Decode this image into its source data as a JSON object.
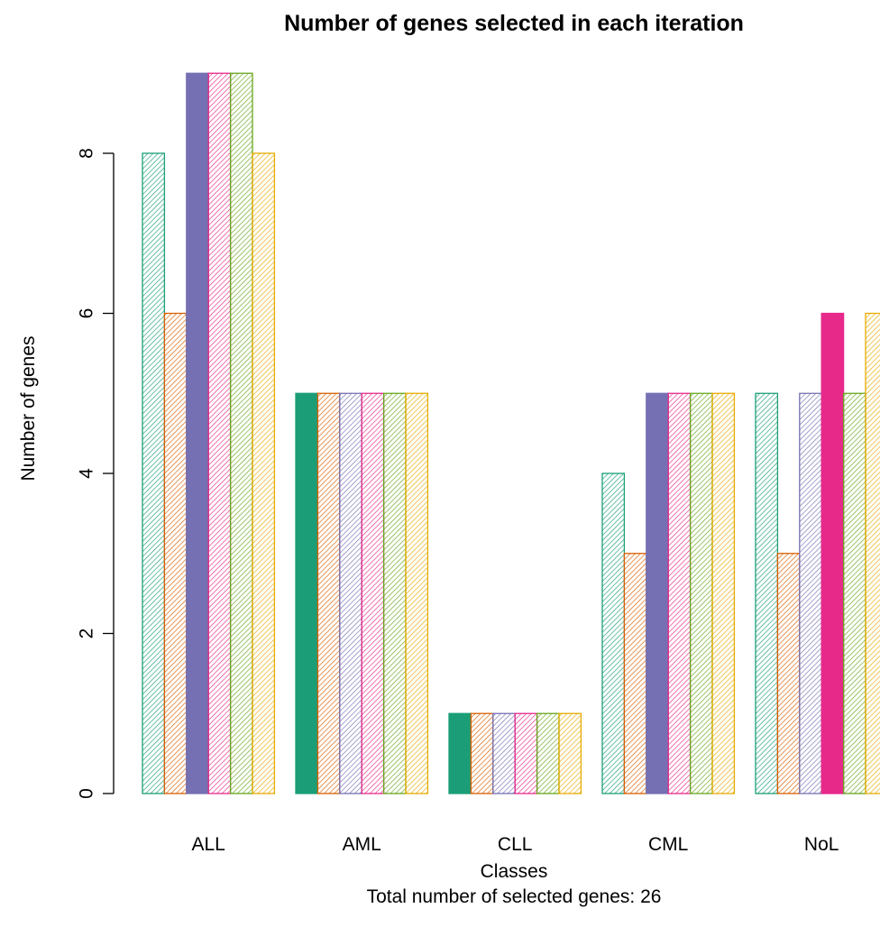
{
  "chart_data": {
    "type": "bar",
    "title": "Number of genes selected in each iteration",
    "xlabel": "Classes",
    "subtitle": "Total number of selected genes:  26",
    "ylabel": "Number of genes",
    "categories": [
      "ALL",
      "AML",
      "CLL",
      "CML",
      "NoL"
    ],
    "ylim": [
      0,
      9
    ],
    "yticks": [
      0,
      2,
      4,
      6,
      8
    ],
    "grid": false,
    "series": [
      {
        "values": [
          8,
          5,
          1,
          4,
          5
        ],
        "color": "#1B9E77",
        "solid": [
          false,
          true,
          true,
          false,
          false
        ]
      },
      {
        "values": [
          6,
          5,
          1,
          3,
          3
        ],
        "color": "#D95F02",
        "solid": [
          false,
          false,
          false,
          false,
          false
        ]
      },
      {
        "values": [
          9,
          5,
          1,
          5,
          5
        ],
        "color": "#7570B3",
        "solid": [
          true,
          false,
          false,
          true,
          false
        ]
      },
      {
        "values": [
          9,
          5,
          1,
          5,
          6
        ],
        "color": "#E7298A",
        "solid": [
          false,
          false,
          false,
          false,
          true
        ]
      },
      {
        "values": [
          9,
          5,
          1,
          5,
          5
        ],
        "color": "#66A61E",
        "solid": [
          false,
          false,
          false,
          false,
          false
        ]
      },
      {
        "values": [
          8,
          5,
          1,
          5,
          6
        ],
        "color": "#E6AB02",
        "solid": [
          false,
          false,
          false,
          false,
          false
        ]
      }
    ]
  }
}
